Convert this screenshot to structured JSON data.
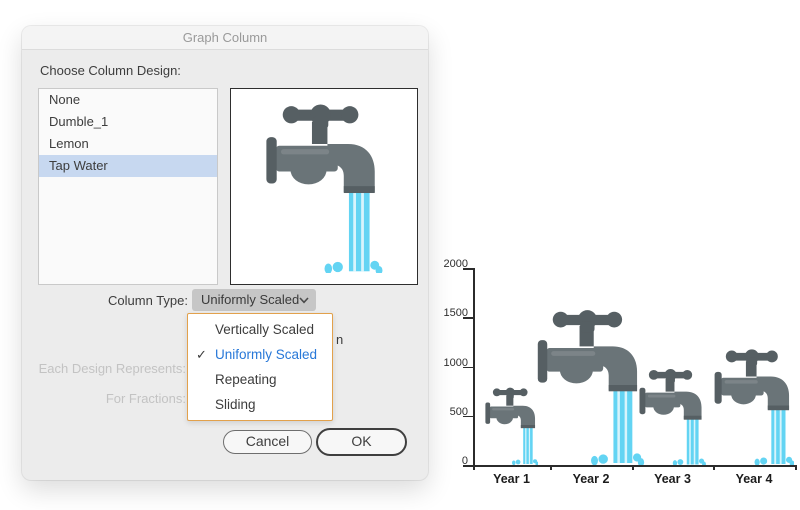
{
  "window": {
    "title": "Graph Column"
  },
  "dialog": {
    "choose_label": "Choose Column Design:",
    "designs": [
      {
        "label": "None",
        "selected": false
      },
      {
        "label": "Dumble_1",
        "selected": false
      },
      {
        "label": "Lemon",
        "selected": false
      },
      {
        "label": "Tap Water",
        "selected": true
      }
    ],
    "column_type": {
      "label": "Column Type:",
      "value": "Uniformly Scaled"
    },
    "menu": {
      "check_glyph": "✓",
      "items": [
        {
          "label": "Vertically Scaled",
          "checked": false
        },
        {
          "label": "Uniformly Scaled",
          "checked": true
        },
        {
          "label": "Repeating",
          "checked": false
        },
        {
          "label": "Sliding",
          "checked": false
        }
      ]
    },
    "obscured_text_fragment": "n",
    "disabled_labels": {
      "each_design": "Each Design Represents:",
      "fractions": "For Fractions:"
    },
    "buttons": {
      "cancel": "Cancel",
      "ok": "OK"
    }
  },
  "chart_data": {
    "type": "bar",
    "style": "pictograph - tap-water design, uniformly scaled columns",
    "categories": [
      "Year 1",
      "Year 2",
      "Year 3",
      "Year 4"
    ],
    "values": [
      800,
      1600,
      1000,
      1200
    ],
    "yticks": [
      0,
      500,
      1000,
      1500,
      2000
    ],
    "ylim": [
      0,
      2000
    ],
    "title": "",
    "xlabel": "",
    "ylabel": "",
    "legend": "none",
    "grid": false,
    "icon": "tap-water-faucet"
  },
  "colors": {
    "water_blue": "#63d4f3",
    "tap_gray": "#6a7478",
    "tap_dark_gray": "#565f63",
    "selection_blue": "#c7d8f0",
    "menu_border_orange": "#e2a14c",
    "menu_active_blue": "#2878d8",
    "dialog_bg": "#ececec"
  }
}
